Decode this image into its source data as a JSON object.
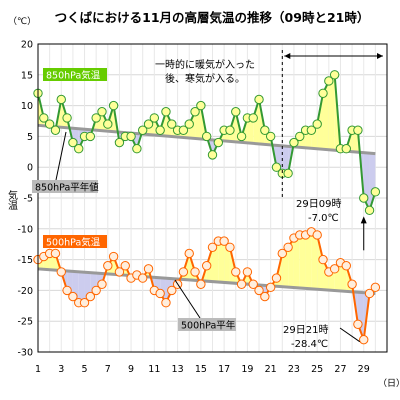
{
  "chart_data": {
    "type": "line",
    "title": "つくばにおける11月の高層気温の推移（09時と21時）",
    "ylabel_unit": "（℃）",
    "ylabel": "気温",
    "xlabel_unit": "（日）",
    "ylim": [
      -30,
      20
    ],
    "yticks": [
      20,
      15,
      10,
      5,
      0,
      -5,
      -10,
      -15,
      -20,
      -25,
      -30
    ],
    "xticks": [
      "1",
      "3",
      "5",
      "7",
      "9",
      "11",
      "13",
      "15",
      "17",
      "19",
      "21",
      "23",
      "25",
      "27",
      "29"
    ],
    "grid": true,
    "series": [
      {
        "name": "850hPa気温",
        "line_color": "#339933",
        "marker_color": "#ffff99",
        "label_bg": "#66cc00",
        "label_fg": "#ffffff",
        "x": [
          1,
          1.5,
          2,
          2.5,
          3,
          3.5,
          4,
          4.5,
          5,
          5.5,
          6,
          6.5,
          7,
          7.5,
          8,
          8.5,
          9,
          9.5,
          10,
          10.5,
          11,
          11.5,
          12,
          12.5,
          13,
          13.5,
          14,
          14.5,
          15,
          15.5,
          16,
          16.5,
          17,
          17.5,
          18,
          18.5,
          19,
          19.5,
          20,
          20.5,
          21,
          21.5,
          22,
          22.5,
          23,
          23.5,
          24,
          24.5,
          25,
          25.5,
          26,
          26.5,
          27,
          27.5,
          28,
          28.5,
          29,
          29.5,
          30
        ],
        "values": [
          12,
          8,
          7,
          6,
          11,
          8,
          4,
          3,
          5,
          5,
          8,
          9,
          7,
          10,
          4,
          5,
          5,
          3,
          6,
          7,
          8,
          6,
          9,
          7,
          6,
          6,
          7,
          9,
          10,
          5,
          2,
          4,
          6,
          6,
          9,
          5,
          8,
          8,
          11,
          6,
          5,
          0,
          -1,
          -1,
          4,
          5,
          6,
          6,
          7,
          12,
          14,
          15,
          3,
          3,
          6,
          6,
          -5,
          -7,
          -4
        ],
        "normal": [
          6.8,
          2.2
        ],
        "normal_label": "850hPa平年値",
        "normal_color": "#999999",
        "fill_above": "#ffff99",
        "fill_below": "#ccccee"
      },
      {
        "name": "500hPa気温",
        "line_color": "#ff6600",
        "marker_color": "#ffeedd",
        "label_bg": "#ff6600",
        "label_fg": "#ffffff",
        "x": [
          1,
          1.5,
          2,
          2.5,
          3,
          3.5,
          4,
          4.5,
          5,
          5.5,
          6,
          6.5,
          7,
          7.5,
          8,
          8.5,
          9,
          9.5,
          10,
          10.5,
          11,
          11.5,
          12,
          12.5,
          13,
          13.5,
          14,
          14.5,
          15,
          15.5,
          16,
          16.5,
          17,
          17.5,
          18,
          18.5,
          19,
          19.5,
          20,
          20.5,
          21,
          21.5,
          22,
          22.5,
          23,
          23.5,
          24,
          24.5,
          25,
          25.5,
          26,
          26.5,
          27,
          27.5,
          28,
          28.5,
          29,
          29.5,
          30
        ],
        "values": [
          -15,
          -14.5,
          -14,
          -14,
          -17,
          -20,
          -21,
          -22,
          -22,
          -21,
          -20,
          -19,
          -16,
          -14.5,
          -17,
          -16,
          -18,
          -17.5,
          -18,
          -16.5,
          -20,
          -20.5,
          -22,
          -20,
          -19,
          -17,
          -14,
          -17,
          -19,
          -16,
          -13,
          -12,
          -12,
          -13,
          -17,
          -19,
          -17,
          -19,
          -20,
          -21,
          -19.5,
          -18,
          -14,
          -13,
          -11.5,
          -11,
          -11,
          -10.5,
          -11,
          -15,
          -17,
          -16.5,
          -15.5,
          -16,
          -19,
          -25.5,
          -28,
          -20.5,
          -19.5
        ],
        "normal": [
          -16.5,
          -20.5
        ],
        "normal_label": "500hPa平年",
        "normal_color": "#999999",
        "fill_above": "#ffff99",
        "fill_below": "#ccccee"
      }
    ],
    "annotations": [
      {
        "text_lines": [
          "一時的に暖気が入った",
          "後、寒気が入る。"
        ]
      },
      {
        "text_lines": [
          "29日09時",
          "-7.0℃"
        ]
      },
      {
        "text_lines": [
          "29日21時",
          "-28.4℃"
        ]
      }
    ]
  }
}
